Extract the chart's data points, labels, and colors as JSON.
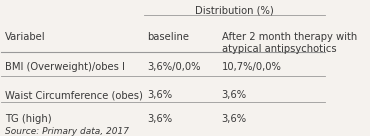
{
  "title_row": "Distribution (%)",
  "col1_header": "Variabel",
  "col2_header": "baseline",
  "col3_header": "After 2 month therapy with\natypical antipsychotics",
  "rows": [
    [
      "BMI (Overweight)/obes I",
      "3,6%/0,0%",
      "10,7%/0,0%"
    ],
    [
      "Waist Circumference (obes)",
      "3,6%",
      "3,6%"
    ],
    [
      "TG (high)",
      "3,6%",
      "3,6%"
    ]
  ],
  "footer": "Source: Primary data, 2017",
  "bg_color": "#f5f2ee",
  "text_color": "#3a3a3a",
  "line_color": "#999999",
  "font_size": 7.2,
  "header_font_size": 7.2,
  "footer_font_size": 6.5
}
